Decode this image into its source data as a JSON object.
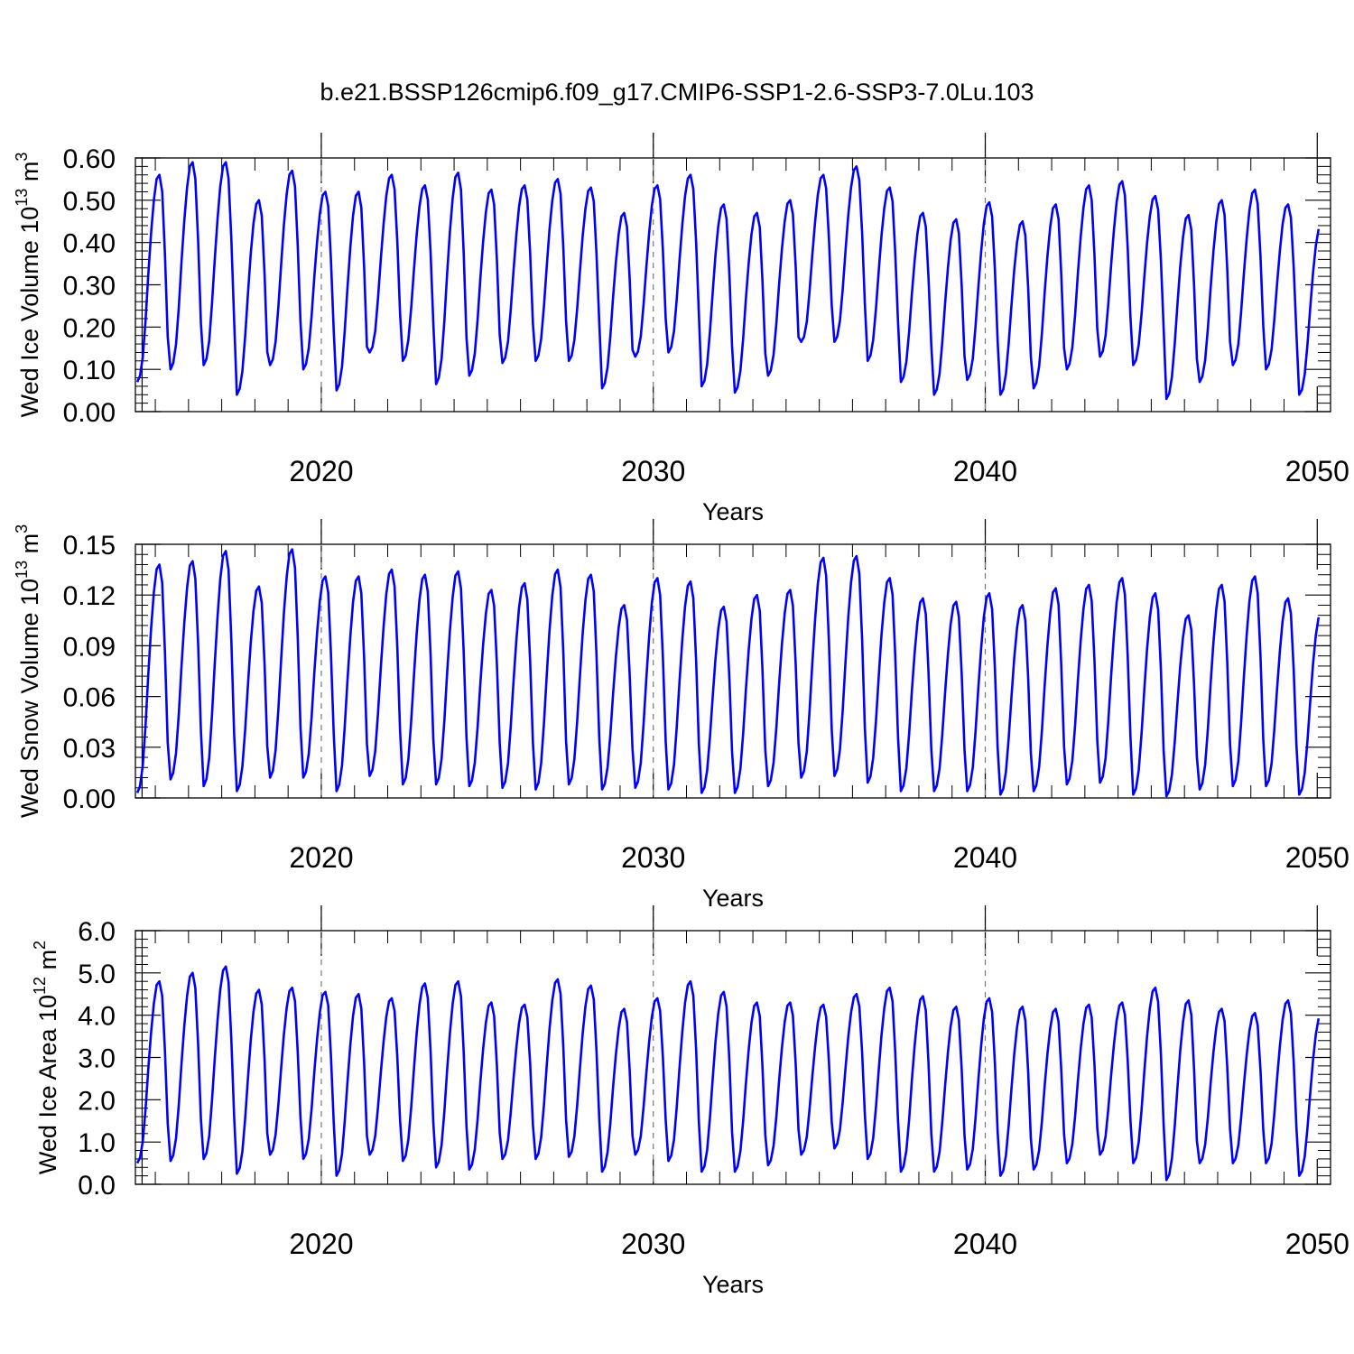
{
  "figure": {
    "title": "b.e21.BSSP126cmip6.f09_g17.CMIP6-SSP1-2.6-SSP3-7.0Lu.103"
  },
  "chart_data": [
    {
      "type": "line",
      "title": "b.e21.BSSP126cmip6.f09_g17.CMIP6-SSP1-2.6-SSP3-7.0Lu.103",
      "ylabel": {
        "main": "Wed Ice Volume 10",
        "exp": "13",
        "unit": " m",
        "unit_exp": "3"
      },
      "xlabel": "Years",
      "xlim": [
        2014.4,
        2050.4
      ],
      "ylim": [
        0,
        0.6
      ],
      "yticks": [
        "0.00",
        "0.10",
        "0.20",
        "0.30",
        "0.40",
        "0.50",
        "0.60"
      ],
      "xticks": [
        "2020",
        "2030",
        "2040",
        "2050"
      ],
      "series_name": "Wed Ice Volume",
      "color": "#0000ff",
      "x_start": 2014.0,
      "x_step": 0.08333,
      "seasonal_min": [
        0.07,
        0.1,
        0.11,
        0.04,
        0.11,
        0.1,
        0.05,
        0.14,
        0.12,
        0.065,
        0.085,
        0.115,
        0.12,
        0.12,
        0.055,
        0.13,
        0.14,
        0.06,
        0.045,
        0.085,
        0.165,
        0.165,
        0.12,
        0.07,
        0.04,
        0.075,
        0.04,
        0.055,
        0.1,
        0.13,
        0.11,
        0.03,
        0.07,
        0.11,
        0.1,
        0.04
      ],
      "seasonal_max": [
        0.56,
        0.59,
        0.59,
        0.5,
        0.57,
        0.52,
        0.52,
        0.56,
        0.535,
        0.565,
        0.525,
        0.535,
        0.55,
        0.53,
        0.47,
        0.535,
        0.56,
        0.49,
        0.47,
        0.5,
        0.56,
        0.58,
        0.53,
        0.47,
        0.455,
        0.495,
        0.45,
        0.49,
        0.535,
        0.545,
        0.51,
        0.465,
        0.5,
        0.525,
        0.49,
        0.44
      ]
    },
    {
      "type": "line",
      "ylabel": {
        "main": "Wed Snow Volume 10",
        "exp": "13",
        "unit": " m",
        "unit_exp": "3"
      },
      "xlabel": "Years",
      "xlim": [
        2014.4,
        2050.4
      ],
      "ylim": [
        0,
        0.15
      ],
      "yticks": [
        "0.00",
        "0.03",
        "0.06",
        "0.09",
        "0.12",
        "0.15"
      ],
      "xticks": [
        "2020",
        "2030",
        "2040",
        "2050"
      ],
      "series_name": "Wed Snow Volume",
      "color": "#0000ff",
      "x_start": 2014.0,
      "x_step": 0.08333,
      "seasonal_min": [
        0.003,
        0.011,
        0.007,
        0.004,
        0.012,
        0.012,
        0.004,
        0.013,
        0.008,
        0.008,
        0.007,
        0.006,
        0.005,
        0.008,
        0.005,
        0.006,
        0.005,
        0.003,
        0.003,
        0.007,
        0.012,
        0.013,
        0.009,
        0.004,
        0.004,
        0.004,
        0.002,
        0.004,
        0.008,
        0.009,
        0.002,
        0.001,
        0.005,
        0.007,
        0.007,
        0.002
      ],
      "seasonal_max": [
        0.138,
        0.14,
        0.146,
        0.125,
        0.147,
        0.131,
        0.131,
        0.135,
        0.132,
        0.134,
        0.123,
        0.127,
        0.135,
        0.132,
        0.114,
        0.13,
        0.128,
        0.113,
        0.12,
        0.123,
        0.142,
        0.143,
        0.13,
        0.118,
        0.116,
        0.121,
        0.114,
        0.124,
        0.126,
        0.13,
        0.121,
        0.108,
        0.126,
        0.131,
        0.118,
        0.109
      ]
    },
    {
      "type": "line",
      "ylabel": {
        "main": "Wed Ice Area 10",
        "exp": "12",
        "unit": " m",
        "unit_exp": "2"
      },
      "xlabel": "Years",
      "xlim": [
        2014.4,
        2050.4
      ],
      "ylim": [
        0,
        6.0
      ],
      "yticks": [
        "0.0",
        "1.0",
        "2.0",
        "3.0",
        "4.0",
        "5.0",
        "6.0"
      ],
      "xticks": [
        "2020",
        "2030",
        "2040",
        "2050"
      ],
      "series_name": "Wed Ice Area",
      "color": "#0000ff",
      "x_start": 2014.0,
      "x_step": 0.08333,
      "seasonal_min": [
        0.5,
        0.55,
        0.6,
        0.25,
        0.7,
        0.6,
        0.2,
        0.7,
        0.55,
        0.4,
        0.35,
        0.6,
        0.6,
        0.65,
        0.3,
        0.7,
        0.55,
        0.3,
        0.3,
        0.45,
        0.7,
        0.85,
        0.6,
        0.3,
        0.3,
        0.35,
        0.2,
        0.35,
        0.5,
        0.7,
        0.5,
        0.1,
        0.5,
        0.5,
        0.5,
        0.2
      ],
      "seasonal_max": [
        4.8,
        5.0,
        5.15,
        4.6,
        4.65,
        4.55,
        4.5,
        4.4,
        4.75,
        4.8,
        4.3,
        4.25,
        4.85,
        4.7,
        4.15,
        4.4,
        4.8,
        4.55,
        4.3,
        4.3,
        4.25,
        4.5,
        4.65,
        4.45,
        4.2,
        4.4,
        4.2,
        4.15,
        4.25,
        4.3,
        4.65,
        4.35,
        4.15,
        4.05,
        4.35,
        4.0
      ]
    }
  ]
}
